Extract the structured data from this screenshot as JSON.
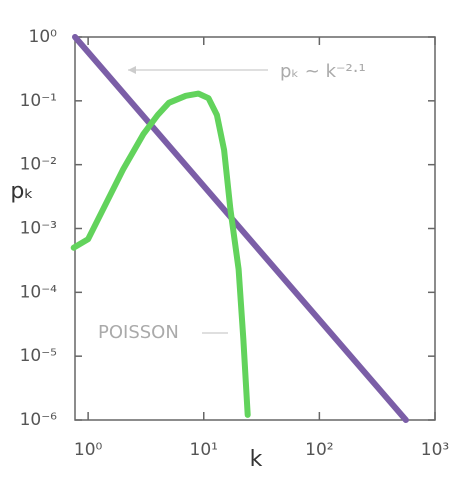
{
  "chart_data": {
    "type": "line",
    "x_label": "k",
    "y_label": "pₖ",
    "log_x": true,
    "log_y": true,
    "xlim": [
      0.77,
      1000
    ],
    "ylim": [
      1e-06,
      1
    ],
    "xticks": [
      {
        "value": 1,
        "label": "10⁰"
      },
      {
        "value": 10,
        "label": "10¹"
      },
      {
        "value": 100,
        "label": "10²"
      },
      {
        "value": 1000,
        "label": "10³"
      }
    ],
    "yticks": [
      {
        "value": 1,
        "label": "10⁰"
      },
      {
        "value": 0.1,
        "label": "10⁻¹"
      },
      {
        "value": 0.01,
        "label": "10⁻²"
      },
      {
        "value": 0.001,
        "label": "10⁻³"
      },
      {
        "value": 0.0001,
        "label": "10⁻⁴"
      },
      {
        "value": 1e-05,
        "label": "10⁻⁵"
      },
      {
        "value": 1e-06,
        "label": "10⁻⁶"
      }
    ],
    "series": [
      {
        "color": "#7b5ea7",
        "x": [
          0.77,
          560
        ],
        "values": [
          1,
          1e-06
        ]
      },
      {
        "color": "#62d35c",
        "x": [
          0.75,
          1,
          2,
          3,
          4,
          5,
          7,
          9,
          11,
          13,
          15,
          17,
          20,
          22,
          24
        ],
        "values": [
          0.0005,
          0.00068,
          0.0083,
          0.03,
          0.06,
          0.093,
          0.12,
          0.13,
          0.11,
          0.06,
          0.017,
          0.002,
          0.00023,
          1.9e-05,
          1.2e-06
        ]
      }
    ],
    "annotations": [
      "pₖ ~ k⁻²·¹",
      "POISSON"
    ]
  }
}
